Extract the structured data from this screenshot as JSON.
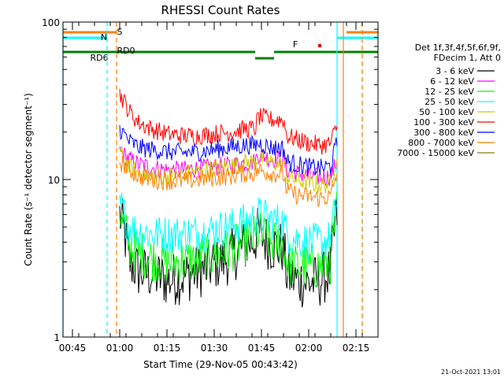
{
  "chart_data": {
    "type": "line",
    "title": "RHESSI Count Rates",
    "xlabel": "Start Time (29-Nov-05 00:43:42)",
    "ylabel": "Count Rate (s⁻¹ detector segment⁻¹)",
    "yscale": "log",
    "ylim": [
      1,
      100
    ],
    "y_ticks": [
      {
        "value": 1,
        "label": "1"
      },
      {
        "value": 10,
        "label": "10"
      },
      {
        "value": 100,
        "label": "100"
      }
    ],
    "x_range": [
      "00:42",
      "02:22"
    ],
    "x_ticks": [
      {
        "time": "00:45",
        "label": "00:45"
      },
      {
        "time": "01:00",
        "label": "01:00"
      },
      {
        "time": "01:15",
        "label": "01:15"
      },
      {
        "time": "01:30",
        "label": "01:30"
      },
      {
        "time": "01:45",
        "label": "01:45"
      },
      {
        "time": "02:00",
        "label": "02:00"
      },
      {
        "time": "02:15",
        "label": "02:15"
      }
    ],
    "legend_header": [
      "Det 1f,3f,4f,5f,6f,9f,",
      "FDecim 1, Att 0"
    ],
    "legend_position": "right",
    "data_start": "01:00",
    "data_end": "02:09",
    "x": [
      "01:00",
      "01:03",
      "01:06",
      "01:10",
      "01:15",
      "01:20",
      "01:25",
      "01:30",
      "01:35",
      "01:40",
      "01:43",
      "01:44",
      "01:48",
      "01:52",
      "01:53",
      "01:56",
      "02:00",
      "02:04",
      "02:07",
      "02:09"
    ],
    "series": [
      {
        "name": "3 - 6 keV",
        "color": "#000000",
        "values": [
          6.0,
          3.0,
          2.6,
          2.5,
          2.3,
          2.4,
          2.6,
          2.9,
          3.2,
          3.8,
          4.2,
          4.6,
          3.8,
          3.7,
          2.5,
          2.3,
          2.2,
          2.3,
          2.6,
          6.0
        ]
      },
      {
        "name": "6 - 12 keV",
        "color": "#ff00ff",
        "values": [
          15.0,
          13.5,
          12.5,
          12.0,
          11.5,
          11.5,
          11.8,
          12.0,
          12.3,
          12.8,
          13.0,
          14.5,
          13.5,
          13.3,
          11.5,
          11.0,
          10.5,
          10.3,
          10.5,
          13.0
        ]
      },
      {
        "name": "12 - 25 keV",
        "color": "#00ff00",
        "values": [
          6.0,
          3.8,
          3.4,
          3.2,
          3.0,
          3.0,
          3.1,
          3.3,
          3.6,
          4.0,
          4.3,
          4.6,
          4.0,
          3.9,
          3.0,
          2.8,
          2.8,
          2.8,
          3.0,
          6.5
        ]
      },
      {
        "name": "25 - 50 keV",
        "color": "#00ffff",
        "values": [
          7.0,
          5.0,
          4.7,
          4.5,
          4.5,
          4.5,
          4.6,
          4.8,
          5.0,
          5.4,
          5.6,
          6.0,
          5.5,
          5.4,
          4.5,
          4.2,
          4.0,
          4.0,
          4.2,
          7.5
        ]
      },
      {
        "name": "50 - 100 keV",
        "color": "#cccc00",
        "values": [
          15.0,
          12.0,
          11.0,
          10.5,
          10.5,
          10.8,
          11.2,
          11.8,
          12.2,
          12.8,
          13.0,
          14.0,
          12.8,
          12.5,
          10.5,
          10.0,
          9.5,
          9.2,
          9.5,
          14.0
        ]
      },
      {
        "name": "100 - 300 keV",
        "color": "#ff0000",
        "values": [
          35.0,
          27.0,
          23.0,
          21.0,
          19.5,
          19.0,
          19.0,
          19.5,
          20.0,
          21.0,
          21.0,
          25.0,
          24.0,
          24.0,
          19.0,
          18.0,
          17.0,
          16.5,
          17.0,
          22.0
        ]
      },
      {
        "name": "300 - 800 keV",
        "color": "#0000ff",
        "values": [
          21.0,
          17.5,
          16.0,
          15.5,
          15.0,
          14.8,
          15.0,
          15.5,
          16.0,
          16.5,
          16.5,
          17.0,
          16.0,
          15.8,
          13.0,
          12.5,
          12.0,
          11.8,
          12.2,
          17.0
        ]
      },
      {
        "name": "800 - 7000 keV",
        "color": "#ff8000",
        "values": [
          13.0,
          11.5,
          10.5,
          10.0,
          9.8,
          9.8,
          10.0,
          10.3,
          10.5,
          11.0,
          11.0,
          11.5,
          11.0,
          10.8,
          8.5,
          8.0,
          7.8,
          7.6,
          7.8,
          11.0
        ]
      },
      {
        "name": "7000 - 15000 keV",
        "color": "#808000",
        "values": [
          null,
          null,
          null,
          null,
          null,
          null,
          null,
          null,
          null,
          null,
          null,
          null,
          null,
          null,
          null,
          null,
          null,
          null,
          null,
          null
        ]
      }
    ],
    "flags": [
      {
        "name": "S",
        "color": "#ff8000",
        "segments": [
          [
            "00:42",
            "00:59"
          ],
          [
            "02:12",
            "02:22"
          ]
        ]
      },
      {
        "name": "N",
        "color": "#00ffff",
        "segments": [
          [
            "00:42",
            "00:56"
          ],
          [
            "02:09",
            "02:22"
          ]
        ]
      },
      {
        "name": "RD6",
        "color": "#008000",
        "segments": [
          [
            "00:42",
            "01:00"
          ],
          [
            "01:00",
            "01:43"
          ],
          [
            "01:49",
            "02:22"
          ]
        ]
      },
      {
        "name": "RD0",
        "color": "#008000",
        "segments": [
          [
            "01:43",
            "01:49"
          ]
        ]
      },
      {
        "name": "F",
        "color": "#dd0000",
        "segments": [
          [
            "02:03",
            "02:04"
          ]
        ]
      }
    ],
    "vertical_lines": [
      {
        "time": "00:42",
        "color": "#00ffff",
        "style": "solid"
      },
      {
        "time": "00:56",
        "color": "#00ffff",
        "style": "dashed"
      },
      {
        "time": "00:59",
        "color": "#ff8000",
        "style": "dashed"
      },
      {
        "time": "02:09",
        "color": "#00ffff",
        "style": "solid"
      },
      {
        "time": "02:11",
        "color": "#ff8000",
        "style": "solid"
      },
      {
        "time": "02:17",
        "color": "#00ffff",
        "style": "dashed"
      },
      {
        "time": "02:17",
        "color": "#ff8000",
        "style": "dashed"
      }
    ],
    "footer_date": "21-Oct-2021 13:01"
  }
}
